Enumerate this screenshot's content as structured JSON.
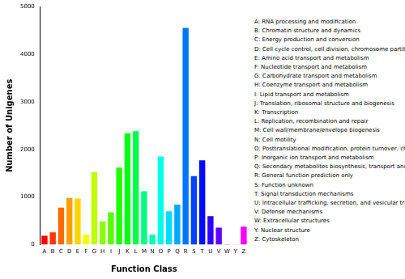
{
  "chart_data": {
    "type": "bar",
    "x_label": "Function Class",
    "y_label": "Number of Unigenes",
    "categories": [
      "A",
      "B",
      "C",
      "D",
      "E",
      "F",
      "G",
      "H",
      "I",
      "J",
      "K",
      "L",
      "M",
      "N",
      "O",
      "P",
      "Q",
      "R",
      "S",
      "T",
      "U",
      "V",
      "W",
      "Y",
      "Z"
    ],
    "values": [
      190,
      260,
      780,
      980,
      970,
      210,
      1520,
      490,
      680,
      1620,
      2340,
      2380,
      1120,
      210,
      1850,
      700,
      840,
      4550,
      1440,
      1770,
      600,
      360,
      10,
      5,
      380
    ],
    "colors": [
      "#FF0000",
      "#FF3500",
      "#FF6A00",
      "#FF9F00",
      "#FFD500",
      "#F4FF00",
      "#BFFF00",
      "#8AFF00",
      "#55FF00",
      "#20FF00",
      "#00FF15",
      "#00FF4A",
      "#00FF80",
      "#00FFB5",
      "#00FFEA",
      "#00DFFF",
      "#00AAFF",
      "#0075FF",
      "#0040FF",
      "#000AFF",
      "#2B00FF",
      "#6000FF",
      "#9500FF",
      "#CA00FF",
      "#FF00FF"
    ],
    "ylim": [
      0,
      5000
    ],
    "yticks": [
      0,
      1000,
      2000,
      3000,
      4000,
      5000
    ],
    "grid": false,
    "annotations": [
      "A: RNA processing and modification",
      "B: Chromatin structure and dynamics",
      "C: Energy production and conversion",
      "D: Cell cycle control, cell division, chromosome partitioning",
      "E: Amino acid transport and metabolism",
      "F: Nucleotide transport and metabolism",
      "G: Carbohydrate transport and metabolism",
      "H: Coenzyme transport and metabolism",
      "I: Lipid transport and metabolism",
      "J: Translation, ribosomal structure and biogenesis",
      "K: Transcription",
      "L: Replication, recombination and repair",
      "M: Cell wall/membrane/envelope biogenesis",
      "N: Cell motility",
      "O: Posttranslational modification, protein turnover, chaperones",
      "P: Inorganic ion transport and metabolism",
      "Q: Secondary metabolites biosynthesis, transport and catabolism",
      "R: General function prediction only",
      "S: Function unknown",
      "T: Signal transduction mechanisms",
      "U: Intracellular trafficking, secretion, and vesicular transport",
      "V: Defense mechanisms",
      "W: Extracellular structures",
      "Y: Nuclear structure",
      "Z: Cytoskeleton"
    ]
  }
}
